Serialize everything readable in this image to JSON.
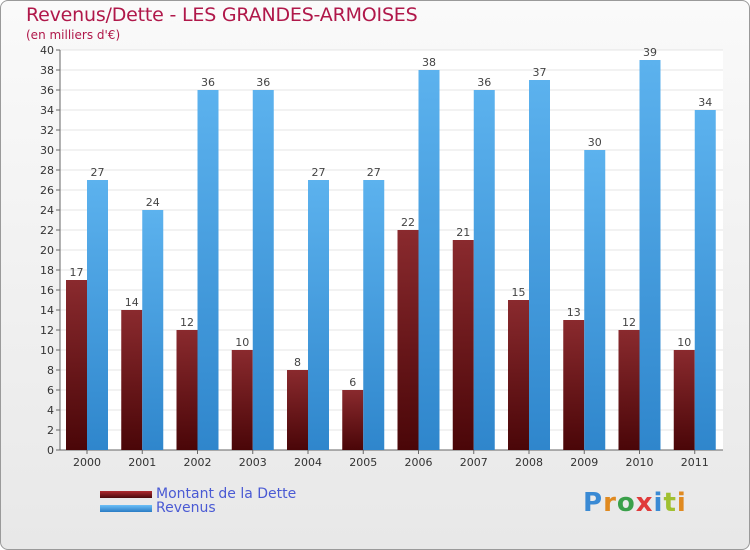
{
  "title": "Revenus/Dette - LES GRANDES-ARMOISES",
  "subtitle": "(en milliers d'€)",
  "logo_text": "Proxiti",
  "colors": {
    "title": "#b0184a",
    "dette": "#7a1a1e",
    "revenus": "#4ea4e4",
    "legend_text": "#4a5ad4"
  },
  "chart_data": {
    "type": "bar",
    "categories": [
      "2000",
      "2001",
      "2002",
      "2003",
      "2004",
      "2005",
      "2006",
      "2007",
      "2008",
      "2009",
      "2010",
      "2011"
    ],
    "series": [
      {
        "name": "Montant de la Dette",
        "values": [
          17,
          14,
          12,
          10,
          8,
          6,
          22,
          21,
          15,
          13,
          12,
          10
        ]
      },
      {
        "name": "Revenus",
        "values": [
          27,
          24,
          36,
          36,
          27,
          27,
          38,
          36,
          37,
          30,
          39,
          34
        ]
      }
    ],
    "ylim": [
      0,
      40
    ],
    "yticks": [
      0,
      2,
      4,
      6,
      8,
      10,
      12,
      14,
      16,
      18,
      20,
      22,
      24,
      26,
      28,
      30,
      32,
      34,
      36,
      38,
      40
    ],
    "grid": true,
    "legend": "bottom-left"
  }
}
